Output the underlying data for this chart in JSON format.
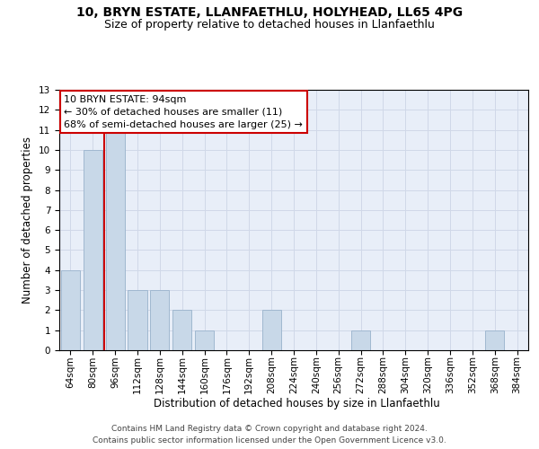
{
  "title1": "10, BRYN ESTATE, LLANFAETHLU, HOLYHEAD, LL65 4PG",
  "title2": "Size of property relative to detached houses in Llanfaethlu",
  "xlabel": "Distribution of detached houses by size in Llanfaethlu",
  "ylabel": "Number of detached properties",
  "categories": [
    "64sqm",
    "80sqm",
    "96sqm",
    "112sqm",
    "128sqm",
    "144sqm",
    "160sqm",
    "176sqm",
    "192sqm",
    "208sqm",
    "224sqm",
    "240sqm",
    "256sqm",
    "272sqm",
    "288sqm",
    "304sqm",
    "320sqm",
    "336sqm",
    "352sqm",
    "368sqm",
    "384sqm"
  ],
  "values": [
    4,
    10,
    11,
    3,
    3,
    2,
    1,
    0,
    0,
    2,
    0,
    0,
    0,
    1,
    0,
    0,
    0,
    0,
    0,
    1,
    0
  ],
  "bar_color": "#c8d8e8",
  "bar_edge_color": "#a0b8d0",
  "highlight_line_color": "#cc0000",
  "highlight_line_index": 2,
  "annotation_line1": "10 BRYN ESTATE: 94sqm",
  "annotation_line2": "← 30% of detached houses are smaller (11)",
  "annotation_line3": "68% of semi-detached houses are larger (25) →",
  "annotation_box_color": "#ffffff",
  "annotation_box_edgecolor": "#cc0000",
  "ylim": [
    0,
    13
  ],
  "yticks": [
    0,
    1,
    2,
    3,
    4,
    5,
    6,
    7,
    8,
    9,
    10,
    11,
    12,
    13
  ],
  "grid_color": "#d0d8e8",
  "bg_color": "#e8eef8",
  "footer1": "Contains HM Land Registry data © Crown copyright and database right 2024.",
  "footer2": "Contains public sector information licensed under the Open Government Licence v3.0.",
  "title_fontsize": 10,
  "subtitle_fontsize": 9,
  "axis_label_fontsize": 8.5,
  "tick_fontsize": 7.5,
  "annotation_fontsize": 8,
  "footer_fontsize": 6.5
}
